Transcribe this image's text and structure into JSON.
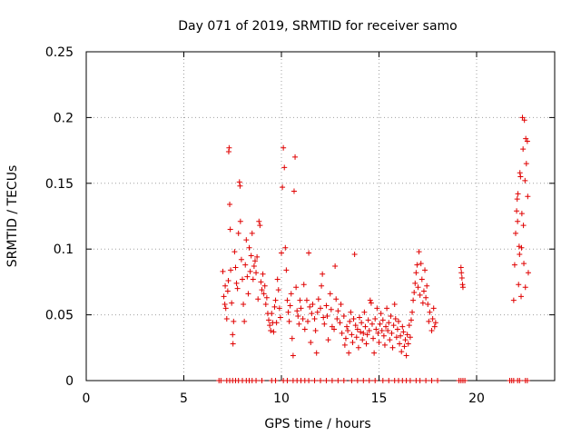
{
  "chart_data": {
    "type": "scatter",
    "title": "Day 071 of 2019, SRMTID for receiver samo",
    "xlabel": "GPS time / hours",
    "ylabel": "SRMTID / TECUs",
    "xlim": [
      0,
      24
    ],
    "ylim": [
      0,
      0.25
    ],
    "xticks": [
      0,
      5,
      10,
      15,
      20
    ],
    "yticks": [
      0,
      0.05,
      0.1,
      0.15,
      0.2,
      0.25
    ],
    "xtick_labels": [
      "0",
      "5",
      "10",
      "15",
      "20"
    ],
    "ytick_labels": [
      "0",
      "0.05",
      "0.1",
      "0.15",
      "0.2",
      "0.25"
    ],
    "grid": true,
    "marker": "+",
    "series": [
      {
        "name": "SRMTID",
        "color": "#e00000",
        "points": [
          [
            7.0,
            0.083
          ],
          [
            7.05,
            0.064
          ],
          [
            7.1,
            0.058
          ],
          [
            7.12,
            0.072
          ],
          [
            7.15,
            0.055
          ],
          [
            7.2,
            0.047
          ],
          [
            7.25,
            0.068
          ],
          [
            7.28,
            0.076
          ],
          [
            7.3,
            0.174
          ],
          [
            7.32,
            0.177
          ],
          [
            7.35,
            0.134
          ],
          [
            7.38,
            0.115
          ],
          [
            7.4,
            0.084
          ],
          [
            7.45,
            0.059
          ],
          [
            7.5,
            0.035
          ],
          [
            7.52,
            0.028
          ],
          [
            7.55,
            0.045
          ],
          [
            7.6,
            0.098
          ],
          [
            7.65,
            0.086
          ],
          [
            7.7,
            0.074
          ],
          [
            7.75,
            0.07
          ],
          [
            7.8,
            0.112
          ],
          [
            7.85,
            0.151
          ],
          [
            7.88,
            0.148
          ],
          [
            7.9,
            0.121
          ],
          [
            7.95,
            0.092
          ],
          [
            8.0,
            0.077
          ],
          [
            8.05,
            0.058
          ],
          [
            8.1,
            0.045
          ],
          [
            8.15,
            0.088
          ],
          [
            8.2,
            0.107
          ],
          [
            8.25,
            0.079
          ],
          [
            8.3,
            0.066
          ],
          [
            8.35,
            0.101
          ],
          [
            8.4,
            0.083
          ],
          [
            8.45,
            0.095
          ],
          [
            8.5,
            0.112
          ],
          [
            8.55,
            0.077
          ],
          [
            8.6,
            0.087
          ],
          [
            8.65,
            0.091
          ],
          [
            8.7,
            0.082
          ],
          [
            8.75,
            0.094
          ],
          [
            8.8,
            0.062
          ],
          [
            8.85,
            0.121
          ],
          [
            8.9,
            0.118
          ],
          [
            8.95,
            0.075
          ],
          [
            9.0,
            0.069
          ],
          [
            9.05,
            0.081
          ],
          [
            9.1,
            0.066
          ],
          [
            9.15,
            0.072
          ],
          [
            9.2,
            0.058
          ],
          [
            9.25,
            0.063
          ],
          [
            9.3,
            0.051
          ],
          [
            9.35,
            0.046
          ],
          [
            9.4,
            0.042
          ],
          [
            9.45,
            0.038
          ],
          [
            9.5,
            0.051
          ],
          [
            9.55,
            0.044
          ],
          [
            9.6,
            0.037
          ],
          [
            9.65,
            0.056
          ],
          [
            9.7,
            0.061
          ],
          [
            9.75,
            0.044
          ],
          [
            9.8,
            0.077
          ],
          [
            9.85,
            0.069
          ],
          [
            9.9,
            0.055
          ],
          [
            9.95,
            0.048
          ],
          [
            10.0,
            0.097
          ],
          [
            10.05,
            0.147
          ],
          [
            10.1,
            0.177
          ],
          [
            10.15,
            0.162
          ],
          [
            10.2,
            0.101
          ],
          [
            10.25,
            0.084
          ],
          [
            10.3,
            0.061
          ],
          [
            10.35,
            0.052
          ],
          [
            10.4,
            0.045
          ],
          [
            10.45,
            0.057
          ],
          [
            10.5,
            0.066
          ],
          [
            10.55,
            0.032
          ],
          [
            10.6,
            0.019
          ],
          [
            10.65,
            0.144
          ],
          [
            10.7,
            0.17
          ],
          [
            10.75,
            0.071
          ],
          [
            10.8,
            0.053
          ],
          [
            10.85,
            0.049
          ],
          [
            10.9,
            0.043
          ],
          [
            10.95,
            0.061
          ],
          [
            11.0,
            0.055
          ],
          [
            11.1,
            0.047
          ],
          [
            11.15,
            0.073
          ],
          [
            11.2,
            0.039
          ],
          [
            11.3,
            0.061
          ],
          [
            11.35,
            0.045
          ],
          [
            11.4,
            0.097
          ],
          [
            11.45,
            0.056
          ],
          [
            11.5,
            0.029
          ],
          [
            11.55,
            0.051
          ],
          [
            11.6,
            0.058
          ],
          [
            11.7,
            0.047
          ],
          [
            11.75,
            0.038
          ],
          [
            11.8,
            0.021
          ],
          [
            11.85,
            0.052
          ],
          [
            11.9,
            0.062
          ],
          [
            12.0,
            0.055
          ],
          [
            12.05,
            0.072
          ],
          [
            12.1,
            0.081
          ],
          [
            12.15,
            0.048
          ],
          [
            12.2,
            0.043
          ],
          [
            12.3,
            0.057
          ],
          [
            12.35,
            0.049
          ],
          [
            12.4,
            0.031
          ],
          [
            12.5,
            0.066
          ],
          [
            12.55,
            0.054
          ],
          [
            12.6,
            0.041
          ],
          [
            12.7,
            0.039
          ],
          [
            12.75,
            0.087
          ],
          [
            12.8,
            0.062
          ],
          [
            12.85,
            0.047
          ],
          [
            12.9,
            0.053
          ],
          [
            13.0,
            0.044
          ],
          [
            13.05,
            0.058
          ],
          [
            13.1,
            0.036
          ],
          [
            13.2,
            0.049
          ],
          [
            13.25,
            0.027
          ],
          [
            13.3,
            0.032
          ],
          [
            13.35,
            0.041
          ],
          [
            13.4,
            0.038
          ],
          [
            13.45,
            0.021
          ],
          [
            13.5,
            0.045
          ],
          [
            13.55,
            0.052
          ],
          [
            13.6,
            0.035
          ],
          [
            13.65,
            0.029
          ],
          [
            13.7,
            0.047
          ],
          [
            13.75,
            0.096
          ],
          [
            13.8,
            0.042
          ],
          [
            13.85,
            0.033
          ],
          [
            13.9,
            0.039
          ],
          [
            13.95,
            0.025
          ],
          [
            14.0,
            0.048
          ],
          [
            14.05,
            0.037
          ],
          [
            14.1,
            0.044
          ],
          [
            14.15,
            0.031
          ],
          [
            14.2,
            0.036
          ],
          [
            14.25,
            0.052
          ],
          [
            14.3,
            0.041
          ],
          [
            14.35,
            0.028
          ],
          [
            14.4,
            0.035
          ],
          [
            14.45,
            0.046
          ],
          [
            14.5,
            0.038
          ],
          [
            14.55,
            0.061
          ],
          [
            14.6,
            0.059
          ],
          [
            14.65,
            0.043
          ],
          [
            14.7,
            0.032
          ],
          [
            14.75,
            0.021
          ],
          [
            14.8,
            0.047
          ],
          [
            14.85,
            0.039
          ],
          [
            14.9,
            0.055
          ],
          [
            14.95,
            0.036
          ],
          [
            15.0,
            0.029
          ],
          [
            15.05,
            0.043
          ],
          [
            15.1,
            0.051
          ],
          [
            15.15,
            0.038
          ],
          [
            15.2,
            0.046
          ],
          [
            15.25,
            0.034
          ],
          [
            15.3,
            0.027
          ],
          [
            15.35,
            0.041
          ],
          [
            15.4,
            0.055
          ],
          [
            15.45,
            0.038
          ],
          [
            15.5,
            0.044
          ],
          [
            15.55,
            0.031
          ],
          [
            15.6,
            0.049
          ],
          [
            15.65,
            0.036
          ],
          [
            15.7,
            0.025
          ],
          [
            15.75,
            0.042
          ],
          [
            15.8,
            0.058
          ],
          [
            15.85,
            0.047
          ],
          [
            15.9,
            0.033
          ],
          [
            15.95,
            0.039
          ],
          [
            16.0,
            0.045
          ],
          [
            16.05,
            0.028
          ],
          [
            16.1,
            0.034
          ],
          [
            16.15,
            0.022
          ],
          [
            16.2,
            0.041
          ],
          [
            16.25,
            0.037
          ],
          [
            16.3,
            0.026
          ],
          [
            16.35,
            0.031
          ],
          [
            16.4,
            0.019
          ],
          [
            16.45,
            0.035
          ],
          [
            16.5,
            0.028
          ],
          [
            16.55,
            0.042
          ],
          [
            16.6,
            0.033
          ],
          [
            16.65,
            0.046
          ],
          [
            16.7,
            0.052
          ],
          [
            16.75,
            0.061
          ],
          [
            16.8,
            0.067
          ],
          [
            16.85,
            0.074
          ],
          [
            16.9,
            0.082
          ],
          [
            16.95,
            0.088
          ],
          [
            17.0,
            0.071
          ],
          [
            17.05,
            0.098
          ],
          [
            17.1,
            0.065
          ],
          [
            17.15,
            0.089
          ],
          [
            17.2,
            0.077
          ],
          [
            17.25,
            0.059
          ],
          [
            17.3,
            0.068
          ],
          [
            17.35,
            0.084
          ],
          [
            17.4,
            0.063
          ],
          [
            17.45,
            0.072
          ],
          [
            17.5,
            0.058
          ],
          [
            17.55,
            0.045
          ],
          [
            17.6,
            0.052
          ],
          [
            17.7,
            0.038
          ],
          [
            17.75,
            0.047
          ],
          [
            17.8,
            0.055
          ],
          [
            17.85,
            0.041
          ],
          [
            17.9,
            0.044
          ],
          [
            19.2,
            0.086
          ],
          [
            19.22,
            0.082
          ],
          [
            19.25,
            0.078
          ],
          [
            19.28,
            0.073
          ],
          [
            19.3,
            0.071
          ],
          [
            21.9,
            0.061
          ],
          [
            21.95,
            0.088
          ],
          [
            22.0,
            0.112
          ],
          [
            22.05,
            0.129
          ],
          [
            22.08,
            0.138
          ],
          [
            22.1,
            0.121
          ],
          [
            22.12,
            0.142
          ],
          [
            22.15,
            0.073
          ],
          [
            22.18,
            0.102
          ],
          [
            22.2,
            0.096
          ],
          [
            22.22,
            0.158
          ],
          [
            22.25,
            0.155
          ],
          [
            22.28,
            0.064
          ],
          [
            22.3,
            0.101
          ],
          [
            22.32,
            0.127
          ],
          [
            22.35,
            0.2
          ],
          [
            22.38,
            0.176
          ],
          [
            22.4,
            0.118
          ],
          [
            22.42,
            0.089
          ],
          [
            22.45,
            0.198
          ],
          [
            22.48,
            0.152
          ],
          [
            22.5,
            0.071
          ],
          [
            22.52,
            0.184
          ],
          [
            22.55,
            0.165
          ],
          [
            22.6,
            0.182
          ],
          [
            22.62,
            0.14
          ],
          [
            22.65,
            0.082
          ]
        ]
      },
      {
        "name": "zero-level",
        "color": "#e00000",
        "points": [
          [
            6.8,
            0
          ],
          [
            6.9,
            0
          ],
          [
            7.2,
            0
          ],
          [
            7.35,
            0
          ],
          [
            7.5,
            0
          ],
          [
            7.65,
            0
          ],
          [
            7.8,
            0
          ],
          [
            8.0,
            0
          ],
          [
            8.2,
            0
          ],
          [
            8.35,
            0
          ],
          [
            8.5,
            0
          ],
          [
            8.7,
            0
          ],
          [
            9.0,
            0
          ],
          [
            9.5,
            0
          ],
          [
            9.7,
            0
          ],
          [
            10.1,
            0
          ],
          [
            10.3,
            0
          ],
          [
            10.6,
            0
          ],
          [
            10.8,
            0
          ],
          [
            11.0,
            0
          ],
          [
            11.2,
            0
          ],
          [
            11.4,
            0
          ],
          [
            11.7,
            0
          ],
          [
            12.0,
            0
          ],
          [
            12.3,
            0
          ],
          [
            12.6,
            0
          ],
          [
            12.9,
            0
          ],
          [
            13.2,
            0
          ],
          [
            13.6,
            0
          ],
          [
            13.9,
            0
          ],
          [
            14.2,
            0
          ],
          [
            14.5,
            0
          ],
          [
            14.8,
            0
          ],
          [
            15.2,
            0
          ],
          [
            15.5,
            0
          ],
          [
            15.8,
            0
          ],
          [
            16.0,
            0
          ],
          [
            16.2,
            0
          ],
          [
            16.4,
            0
          ],
          [
            16.6,
            0
          ],
          [
            16.9,
            0
          ],
          [
            17.1,
            0
          ],
          [
            17.4,
            0
          ],
          [
            17.7,
            0
          ],
          [
            18.0,
            0
          ],
          [
            19.1,
            0
          ],
          [
            19.2,
            0
          ],
          [
            19.3,
            0
          ],
          [
            19.4,
            0
          ],
          [
            21.7,
            0
          ],
          [
            21.8,
            0
          ],
          [
            21.9,
            0
          ],
          [
            22.1,
            0
          ],
          [
            22.2,
            0
          ],
          [
            22.5,
            0
          ],
          [
            22.6,
            0
          ]
        ]
      }
    ]
  }
}
